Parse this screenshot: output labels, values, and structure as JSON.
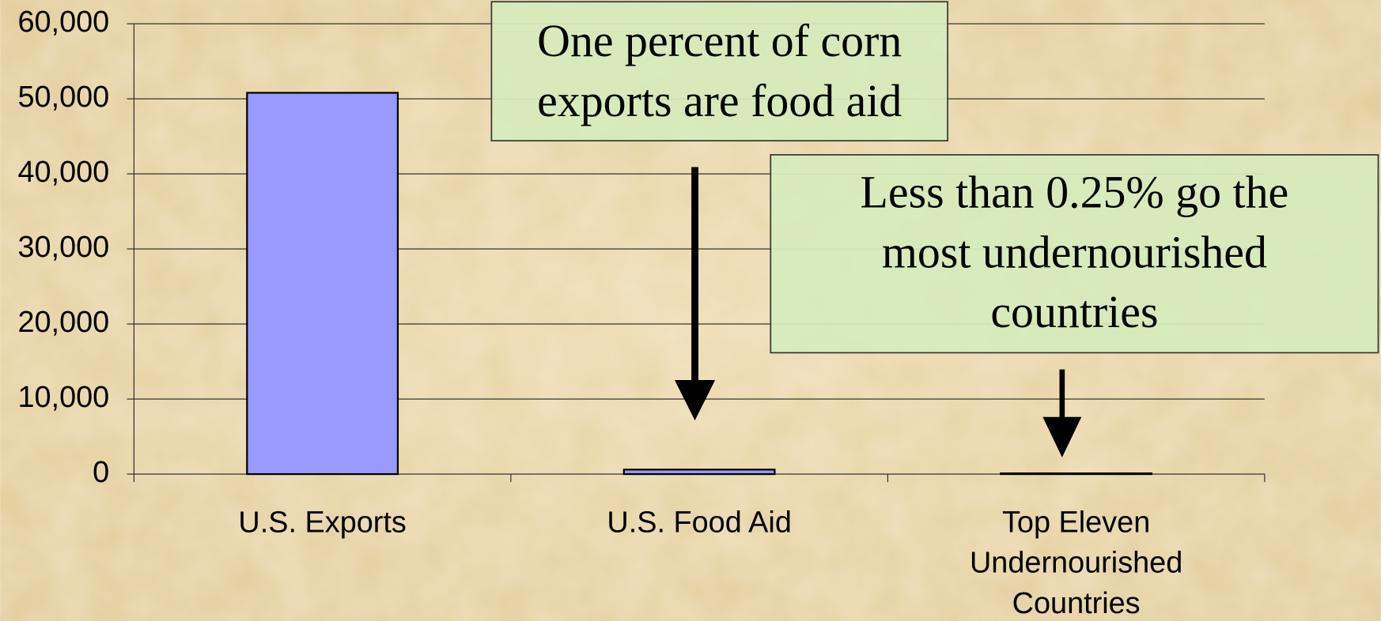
{
  "chart_data": {
    "type": "bar",
    "categories": [
      "U.S. Exports",
      "U.S. Food Aid",
      "Top Eleven Undernourished Countries"
    ],
    "values": [
      50800,
      600,
      100
    ],
    "color": "#9999ff",
    "ylim": [
      0,
      60000
    ],
    "yticks": [
      0,
      {
        "value": 10000,
        "label": "10,000"
      },
      {
        "value": 20000,
        "label": "20,000"
      },
      {
        "value": 30000,
        "label": "30,000"
      },
      {
        "value": 40000,
        "label": "40,000"
      },
      {
        "value": 50000,
        "label": "50,000"
      },
      {
        "value": 60000,
        "label": "60,000"
      }
    ],
    "grid": true,
    "annotations": [
      {
        "lines": [
          "One percent of corn",
          "exports are food aid"
        ]
      },
      {
        "lines": [
          "Less than 0.25% go the",
          "most undernourished",
          "countries"
        ]
      }
    ]
  }
}
